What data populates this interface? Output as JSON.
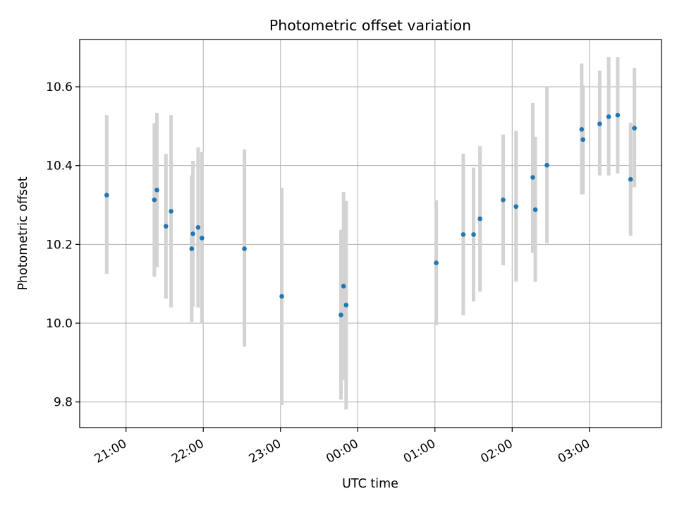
{
  "chart_data": {
    "type": "scatter",
    "title": "Photometric offset variation",
    "xlabel": "UTC time",
    "ylabel": "Photometric offset",
    "x_ticks": [
      "21:00",
      "22:00",
      "23:00",
      "00:00",
      "01:00",
      "02:00",
      "03:00"
    ],
    "y_ticks": [
      "9.8",
      "10.0",
      "10.2",
      "10.4",
      "10.6"
    ],
    "grid": true,
    "legend": "none",
    "x_range": [
      "20:24",
      "03:56"
    ],
    "ylim": [
      9.735,
      10.72
    ],
    "colors": {
      "points": "#1f77b4",
      "error_bars": "#d3d3d3",
      "grid": "#b0b0b0"
    },
    "points": [
      {
        "x": "20:45",
        "y": 10.325,
        "ylow": 10.125,
        "yhigh": 10.528
      },
      {
        "x": "21:22",
        "y": 10.313,
        "ylow": 10.118,
        "yhigh": 10.508
      },
      {
        "x": "21:24",
        "y": 10.338,
        "ylow": 10.142,
        "yhigh": 10.534
      },
      {
        "x": "21:31",
        "y": 10.246,
        "ylow": 10.062,
        "yhigh": 10.43
      },
      {
        "x": "21:35",
        "y": 10.284,
        "ylow": 10.04,
        "yhigh": 10.528
      },
      {
        "x": "21:51",
        "y": 10.189,
        "ylow": 10.003,
        "yhigh": 10.375
      },
      {
        "x": "21:52",
        "y": 10.227,
        "ylow": 10.042,
        "yhigh": 10.412
      },
      {
        "x": "21:56",
        "y": 10.243,
        "ylow": 10.04,
        "yhigh": 10.446
      },
      {
        "x": "21:59",
        "y": 10.216,
        "ylow": 9.998,
        "yhigh": 10.435
      },
      {
        "x": "22:32",
        "y": 10.189,
        "ylow": 9.94,
        "yhigh": 10.441
      },
      {
        "x": "23:01",
        "y": 10.068,
        "ylow": 9.792,
        "yhigh": 10.344
      },
      {
        "x": "23:47",
        "y": 10.021,
        "ylow": 9.806,
        "yhigh": 10.237
      },
      {
        "x": "23:49",
        "y": 10.094,
        "ylow": 9.855,
        "yhigh": 10.333
      },
      {
        "x": "23:51",
        "y": 10.046,
        "ylow": 9.781,
        "yhigh": 10.31
      },
      {
        "x": "01:01",
        "y": 10.153,
        "ylow": 9.995,
        "yhigh": 10.312
      },
      {
        "x": "01:22",
        "y": 10.225,
        "ylow": 10.02,
        "yhigh": 10.43
      },
      {
        "x": "01:30",
        "y": 10.225,
        "ylow": 10.055,
        "yhigh": 10.395
      },
      {
        "x": "01:35",
        "y": 10.265,
        "ylow": 10.08,
        "yhigh": 10.449
      },
      {
        "x": "01:53",
        "y": 10.313,
        "ylow": 10.147,
        "yhigh": 10.479
      },
      {
        "x": "02:03",
        "y": 10.296,
        "ylow": 10.105,
        "yhigh": 10.488
      },
      {
        "x": "02:16",
        "y": 10.37,
        "ylow": 10.178,
        "yhigh": 10.559
      },
      {
        "x": "02:18",
        "y": 10.288,
        "ylow": 10.105,
        "yhigh": 10.473
      },
      {
        "x": "02:27",
        "y": 10.401,
        "ylow": 10.203,
        "yhigh": 10.6
      },
      {
        "x": "02:54",
        "y": 10.492,
        "ylow": 10.327,
        "yhigh": 10.659
      },
      {
        "x": "02:55",
        "y": 10.466,
        "ylow": 10.327,
        "yhigh": 10.604
      },
      {
        "x": "03:08",
        "y": 10.506,
        "ylow": 10.375,
        "yhigh": 10.641
      },
      {
        "x": "03:15",
        "y": 10.524,
        "ylow": 10.375,
        "yhigh": 10.675
      },
      {
        "x": "03:22",
        "y": 10.528,
        "ylow": 10.38,
        "yhigh": 10.675
      },
      {
        "x": "03:32",
        "y": 10.365,
        "ylow": 10.222,
        "yhigh": 10.509
      },
      {
        "x": "03:35",
        "y": 10.495,
        "ylow": 10.345,
        "yhigh": 10.648
      }
    ]
  }
}
